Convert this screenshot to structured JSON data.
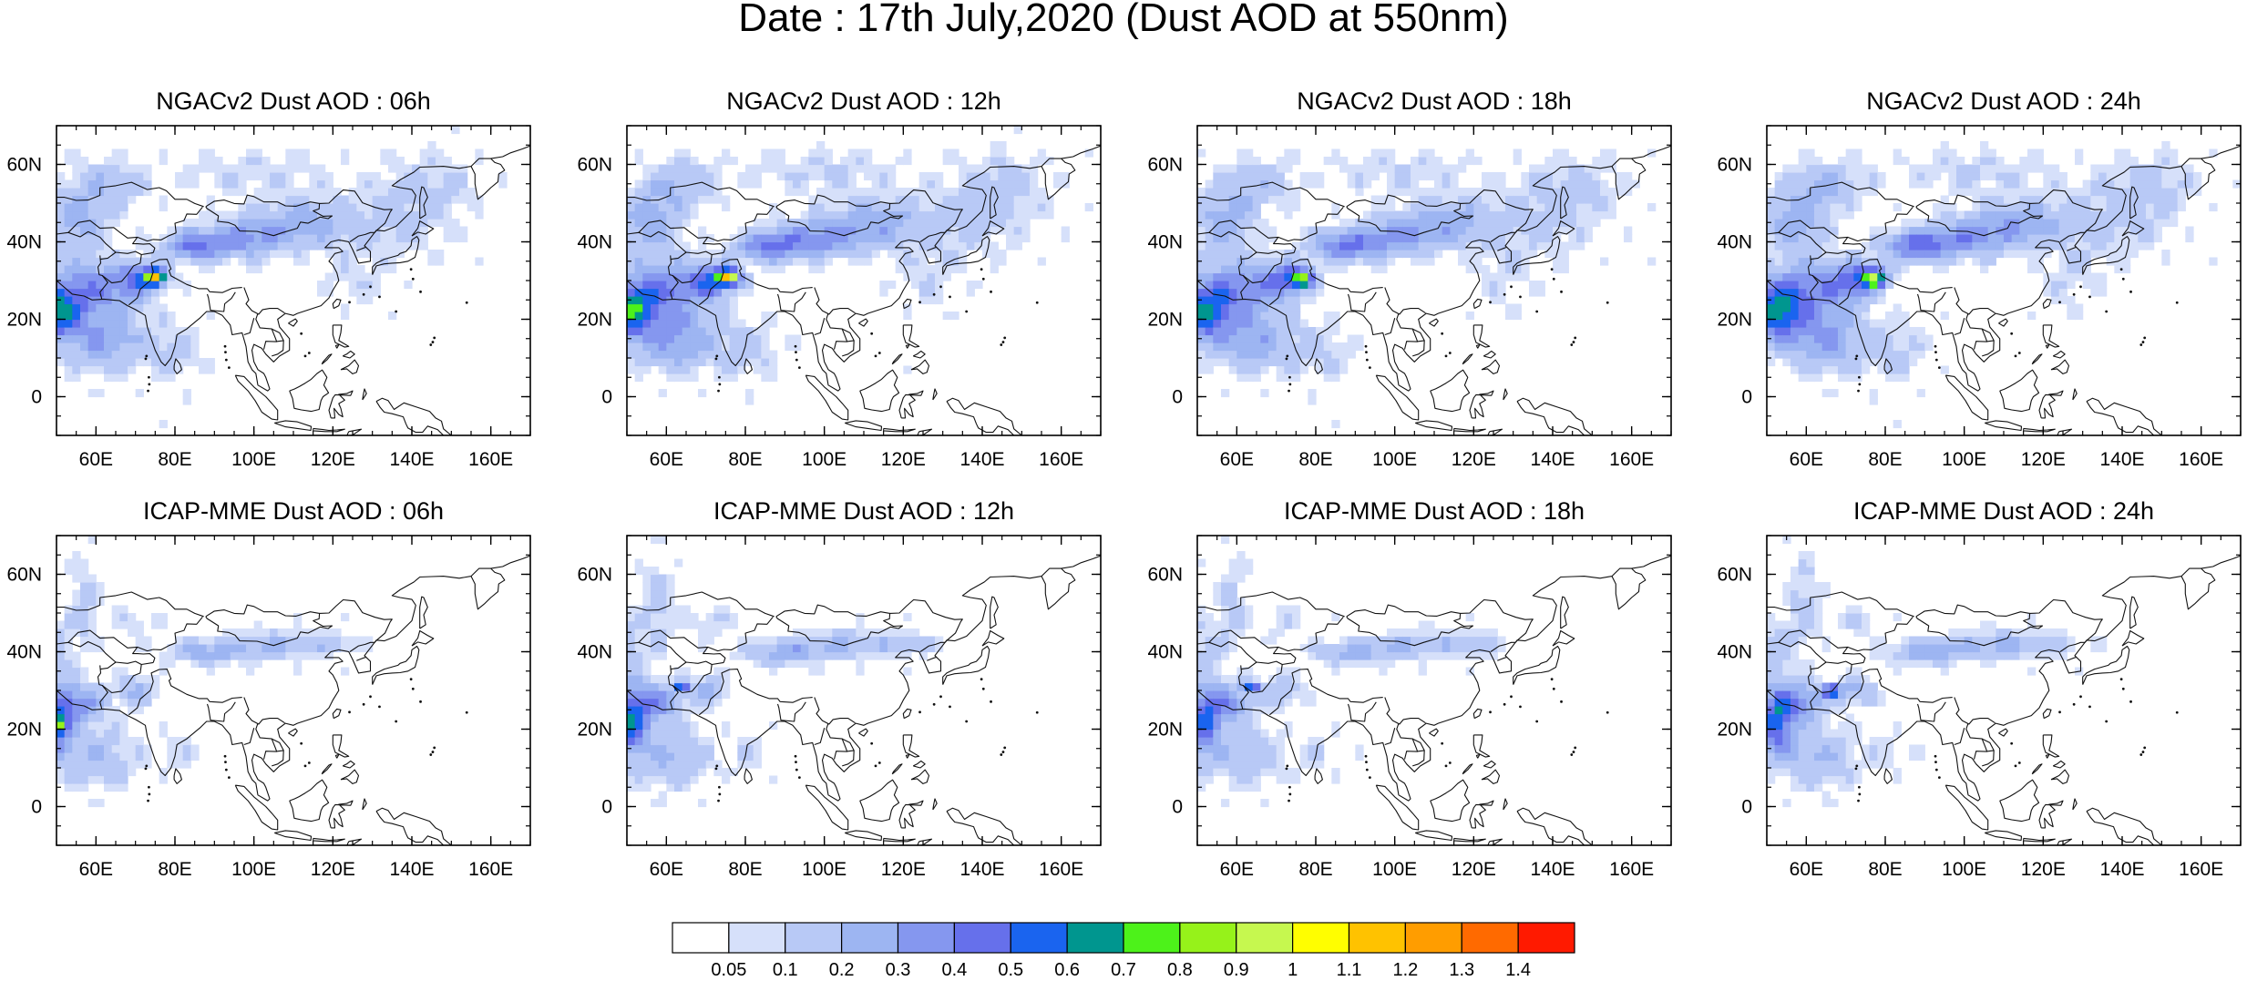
{
  "title": "Date : 17th July,2020 (Dust AOD at 550nm)",
  "panels": [
    {
      "title": "NGACv2 Dust AOD : 06h"
    },
    {
      "title": "NGACv2 Dust AOD : 12h"
    },
    {
      "title": "NGACv2 Dust AOD : 18h"
    },
    {
      "title": "NGACv2 Dust AOD : 24h"
    },
    {
      "title": "ICAP-MME Dust AOD : 06h"
    },
    {
      "title": "ICAP-MME Dust AOD : 12h"
    },
    {
      "title": "ICAP-MME Dust AOD : 18h"
    },
    {
      "title": "ICAP-MME Dust AOD : 24h"
    }
  ],
  "map": {
    "lon_range": [
      50,
      170
    ],
    "lat_range": [
      -10,
      70
    ],
    "x_ticks": [
      "60E",
      "80E",
      "100E",
      "120E",
      "140E",
      "160E"
    ],
    "x_tick_values": [
      60,
      80,
      100,
      120,
      140,
      160
    ],
    "y_ticks": [
      "0",
      "20N",
      "40N",
      "60N"
    ],
    "y_tick_values": [
      0,
      20,
      40,
      60
    ]
  },
  "colorbar": {
    "labels": [
      "0.05",
      "0.1",
      "0.2",
      "0.3",
      "0.4",
      "0.5",
      "0.6",
      "0.7",
      "0.8",
      "0.9",
      "1",
      "1.1",
      "1.2",
      "1.3",
      "1.4"
    ],
    "colors": [
      "#ffffff",
      "#d6e0fa",
      "#b8c9f6",
      "#9db5f2",
      "#8597ef",
      "#6670eb",
      "#1a64ef",
      "#00968f",
      "#4df21a",
      "#96f21a",
      "#c6f84f",
      "#fffe00",
      "#ffc200",
      "#ff9d00",
      "#ff6a00",
      "#ff1a00"
    ]
  }
}
